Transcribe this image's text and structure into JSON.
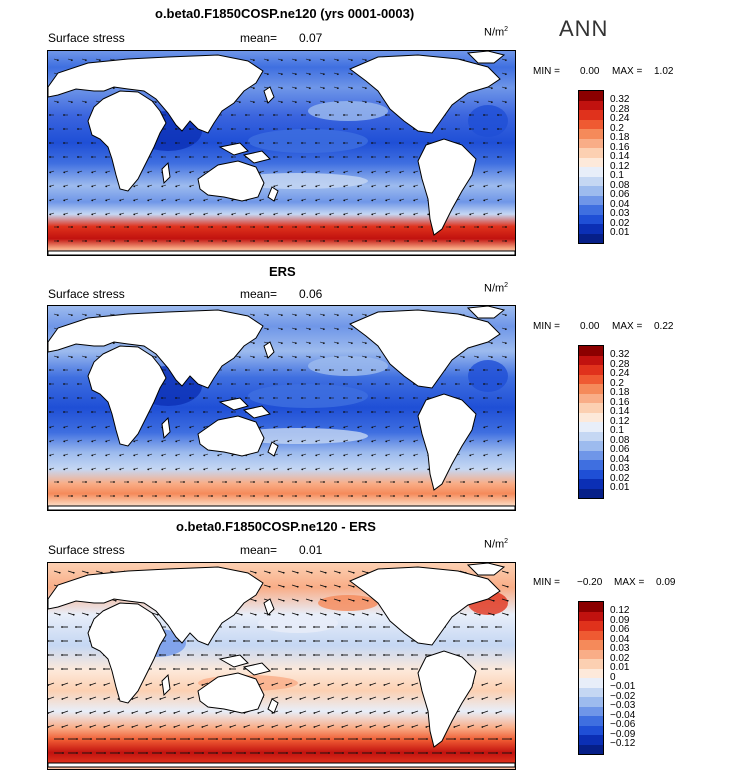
{
  "season": "ANN",
  "units_base": "N/m",
  "units_exp": "2",
  "panels": [
    {
      "title": "o.beta0.F1850COSP.ne120 (yrs 0001-0003)",
      "variable": "Surface stress",
      "mean_label": "mean=",
      "mean_value": "0.07",
      "min_label": "MIN =",
      "min_value": "0.00",
      "max_label": "MAX =",
      "max_value": "1.02",
      "levels": [
        "0.32",
        "0.28",
        "0.24",
        "0.2",
        "0.18",
        "0.16",
        "0.14",
        "0.12",
        "0.1",
        "0.08",
        "0.06",
        "0.04",
        "0.03",
        "0.02",
        "0.01"
      ],
      "colors": [
        "#8b0000",
        "#c1120f",
        "#e0321c",
        "#ef5a32",
        "#f58a5a",
        "#f9ad87",
        "#fcd0b2",
        "#fde9da",
        "#e8eef9",
        "#c5d7f3",
        "#9dbbee",
        "#6f96e8",
        "#3f6fe0",
        "#1f4fd6",
        "#0b2fb5",
        "#061f88"
      ]
    },
    {
      "title": "ERS",
      "variable": "Surface stress",
      "mean_label": "mean=",
      "mean_value": "0.06",
      "min_label": "MIN =",
      "min_value": "0.00",
      "max_label": "MAX =",
      "max_value": "0.22",
      "levels": [
        "0.32",
        "0.28",
        "0.24",
        "0.2",
        "0.18",
        "0.16",
        "0.14",
        "0.12",
        "0.1",
        "0.08",
        "0.06",
        "0.04",
        "0.03",
        "0.02",
        "0.01"
      ],
      "colors": [
        "#8b0000",
        "#c1120f",
        "#e0321c",
        "#ef5a32",
        "#f58a5a",
        "#f9ad87",
        "#fcd0b2",
        "#fde9da",
        "#e8eef9",
        "#c5d7f3",
        "#9dbbee",
        "#6f96e8",
        "#3f6fe0",
        "#1f4fd6",
        "#0b2fb5",
        "#061f88"
      ]
    },
    {
      "title": "o.beta0.F1850COSP.ne120 - ERS",
      "variable": "Surface stress",
      "mean_label": "mean=",
      "mean_value": "0.01",
      "min_label": "MIN =",
      "min_value": "−0.20",
      "max_label": "MAX =",
      "max_value": "0.09",
      "levels": [
        "0.12",
        "0.09",
        "0.06",
        "0.04",
        "0.03",
        "0.02",
        "0.01",
        "0",
        "−0.01",
        "−0.02",
        "−0.03",
        "−0.04",
        "−0.06",
        "−0.09",
        "−0.12"
      ],
      "colors": [
        "#8b0000",
        "#c1120f",
        "#e0321c",
        "#ef5a32",
        "#f58a5a",
        "#f9ad87",
        "#fcd0b2",
        "#fde9da",
        "#e8eef9",
        "#c5d7f3",
        "#9dbbee",
        "#6f96e8",
        "#3f6fe0",
        "#1f4fd6",
        "#0b2fb5",
        "#061f88"
      ]
    }
  ]
}
